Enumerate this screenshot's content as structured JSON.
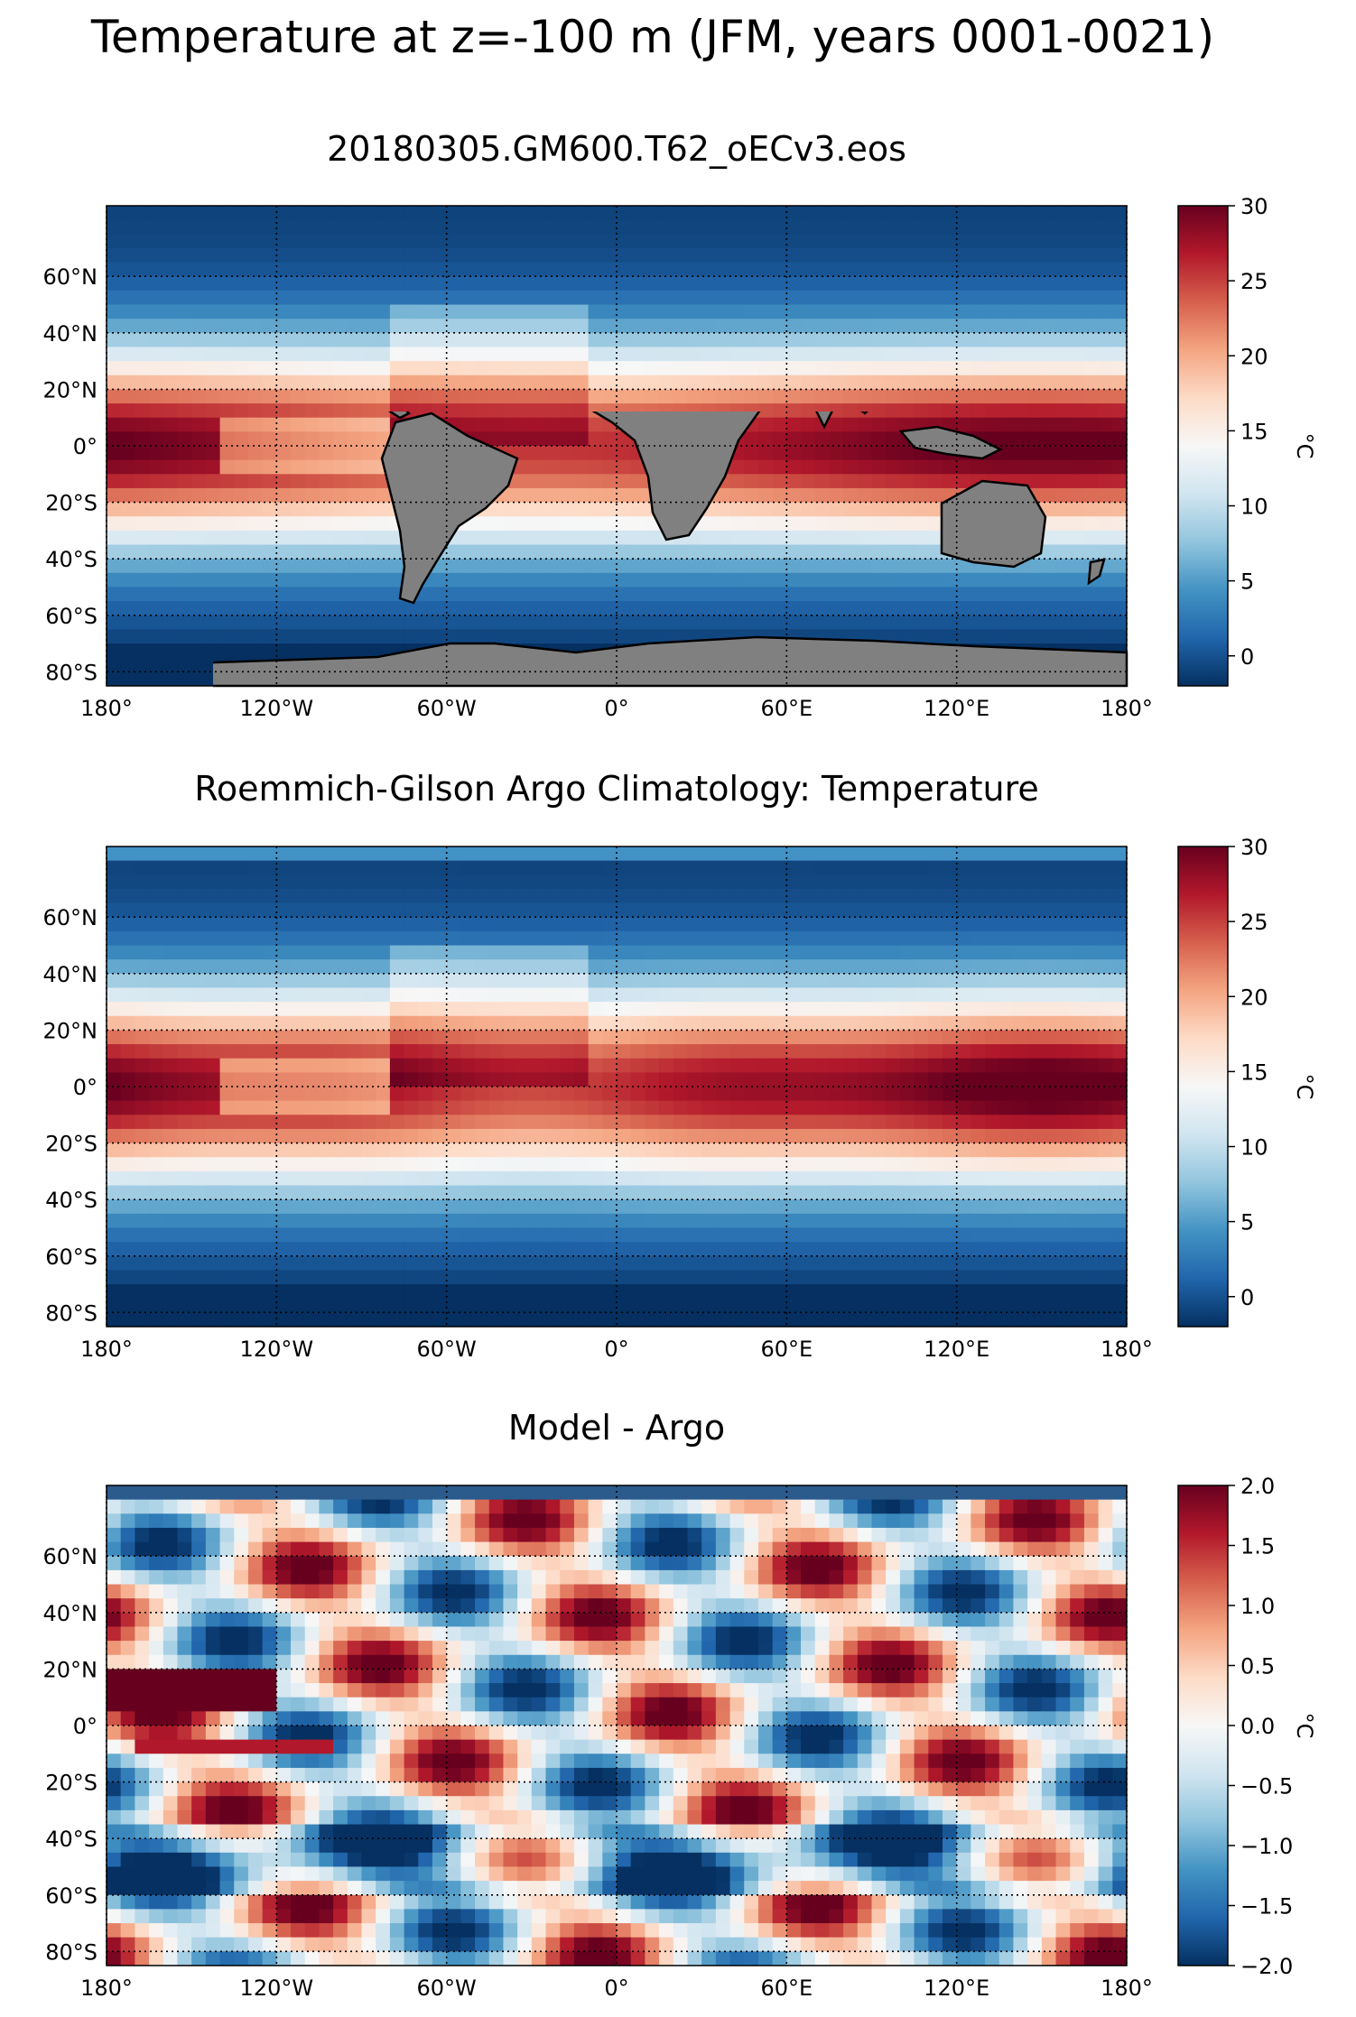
{
  "figure": {
    "suptitle": "Temperature at z=-100 m (JFM, years 0001-0021)"
  },
  "map": {
    "lon_ticks": [
      "180°",
      "120°W",
      "60°W",
      "0°",
      "60°E",
      "120°E",
      "180°"
    ],
    "lon_values": [
      -180,
      -120,
      -60,
      0,
      60,
      120,
      180
    ],
    "lat_ticks": [
      "60°N",
      "40°N",
      "20°N",
      "0°",
      "20°S",
      "40°S",
      "60°S",
      "80°S"
    ],
    "lat_values": [
      60,
      40,
      20,
      0,
      -20,
      -40,
      -60,
      -80
    ],
    "lon_range": [
      -180,
      180
    ],
    "lat_range": [
      -85,
      85
    ],
    "land_color": "#808080",
    "gridlines": "dotted"
  },
  "colors": {
    "cmap": [
      "#053061",
      "#2166ac",
      "#4393c3",
      "#92c5de",
      "#d1e5f0",
      "#f7f7f7",
      "#fddbc7",
      "#f4a582",
      "#d6604d",
      "#b2182b",
      "#67001f"
    ],
    "missing": "#ffffff"
  },
  "chart_data": [
    {
      "type": "heatmap",
      "title": "20180305.GM600.T62_oECv3.eos",
      "field": "model",
      "colorbar": {
        "label": "°C",
        "range": [
          -2,
          30
        ],
        "ticks": [
          0,
          5,
          10,
          15,
          20,
          25,
          30
        ],
        "tick_labels": [
          "0",
          "5",
          "10",
          "15",
          "20",
          "25",
          "30"
        ]
      }
    },
    {
      "type": "heatmap",
      "title": "Roemmich-Gilson Argo Climatology: Temperature",
      "field": "argo",
      "colorbar": {
        "label": "°C",
        "range": [
          -2,
          30
        ],
        "ticks": [
          0,
          5,
          10,
          15,
          20,
          25,
          30
        ],
        "tick_labels": [
          "0",
          "5",
          "10",
          "15",
          "20",
          "25",
          "30"
        ]
      }
    },
    {
      "type": "heatmap",
      "title": "Model - Argo",
      "field": "bias",
      "colorbar": {
        "label": "°C",
        "range": [
          -2,
          2
        ],
        "ticks": [
          -2.0,
          -1.5,
          -1.0,
          -0.5,
          0.0,
          0.5,
          1.0,
          1.5,
          2.0
        ],
        "tick_labels": [
          "−2.0",
          "−1.5",
          "−1.0",
          "−0.5",
          "0.0",
          "0.5",
          "1.0",
          "1.5",
          "2.0"
        ]
      }
    }
  ]
}
